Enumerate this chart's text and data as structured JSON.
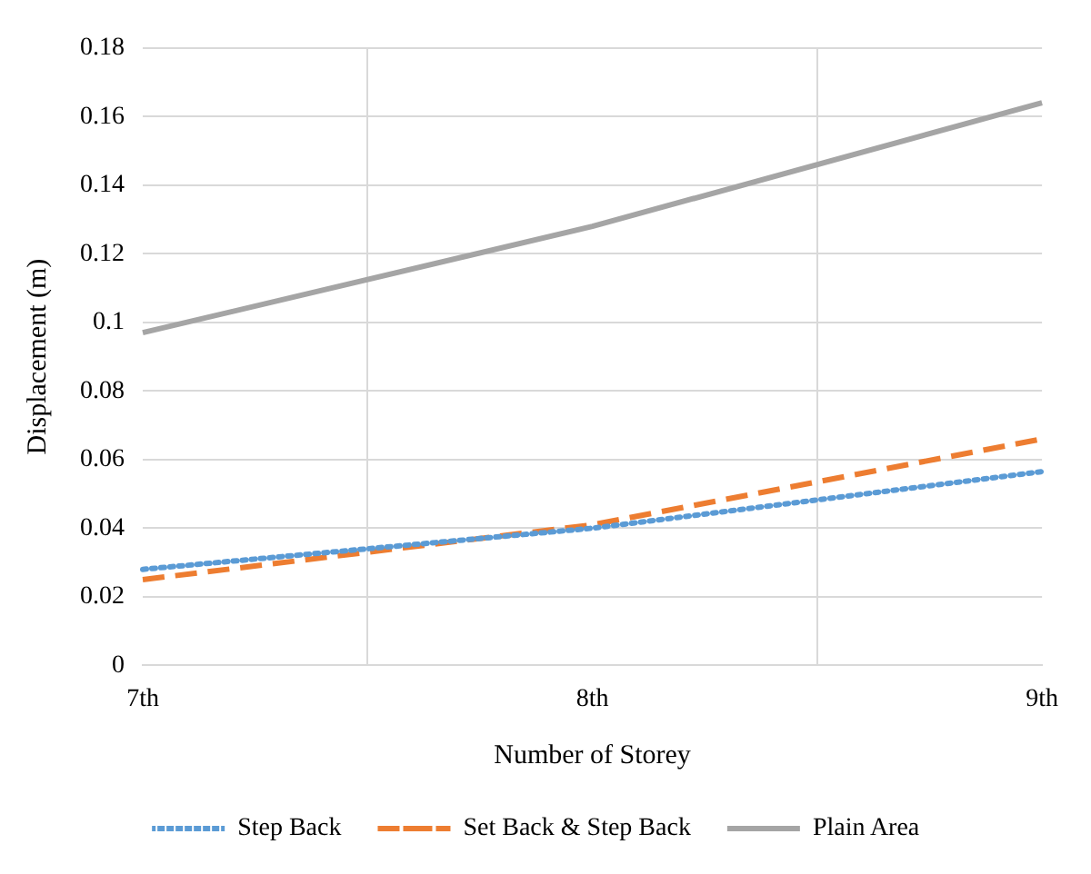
{
  "chart_data": {
    "type": "line",
    "xlabel": "Number of Storey",
    "ylabel": "Displacement (m)",
    "categories": [
      "7th",
      "8th",
      "9th"
    ],
    "series": [
      {
        "name": "Step Back",
        "color": "#5b9bd5",
        "line_style": "dotted",
        "values": [
          0.028,
          0.04,
          0.0565
        ]
      },
      {
        "name": "Set Back & Step Back",
        "color": "#ed7d31",
        "line_style": "dashed",
        "values": [
          0.025,
          0.041,
          0.066
        ]
      },
      {
        "name": "Plain Area",
        "color": "#a5a5a5",
        "line_style": "solid",
        "values": [
          0.097,
          0.128,
          0.164
        ]
      }
    ],
    "ylim": [
      0,
      0.18
    ],
    "yticks": [
      0,
      0.02,
      0.04,
      0.06,
      0.08,
      0.1,
      0.12,
      0.14,
      0.16,
      0.18
    ],
    "grid": true,
    "legend": "bottom",
    "marker": "none"
  }
}
